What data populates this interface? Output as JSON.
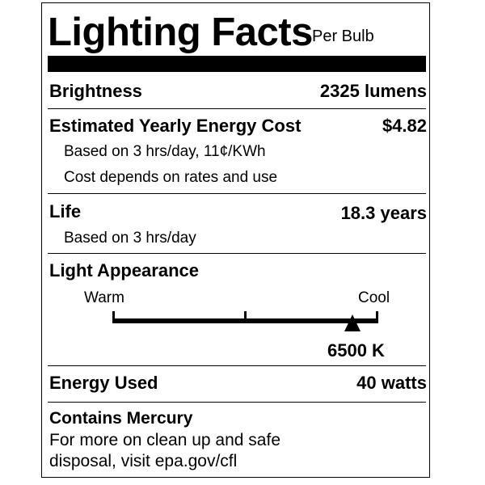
{
  "label": {
    "title": "Lighting Facts",
    "per": "Per Bulb",
    "brightness": {
      "label": "Brightness",
      "value": "2325 lumens"
    },
    "cost": {
      "label": "Estimated Yearly Energy Cost",
      "value": "$4.82",
      "notes": [
        "Based on 3 hrs/day, 11¢/KWh",
        "Cost depends on rates and use"
      ]
    },
    "life": {
      "label": "Life",
      "value": "18.3 years",
      "note": "Based on 3 hrs/day"
    },
    "appearance": {
      "label": "Light Appearance",
      "warm": "Warm",
      "cool": "Cool",
      "value": "6500 K",
      "marker_fraction": 0.905
    },
    "energy": {
      "label": "Energy Used",
      "value": "40 watts"
    },
    "mercury": {
      "label": "Contains Mercury",
      "lines": [
        "For more on clean up and safe",
        "disposal, visit epa.gov/cfl"
      ]
    }
  }
}
